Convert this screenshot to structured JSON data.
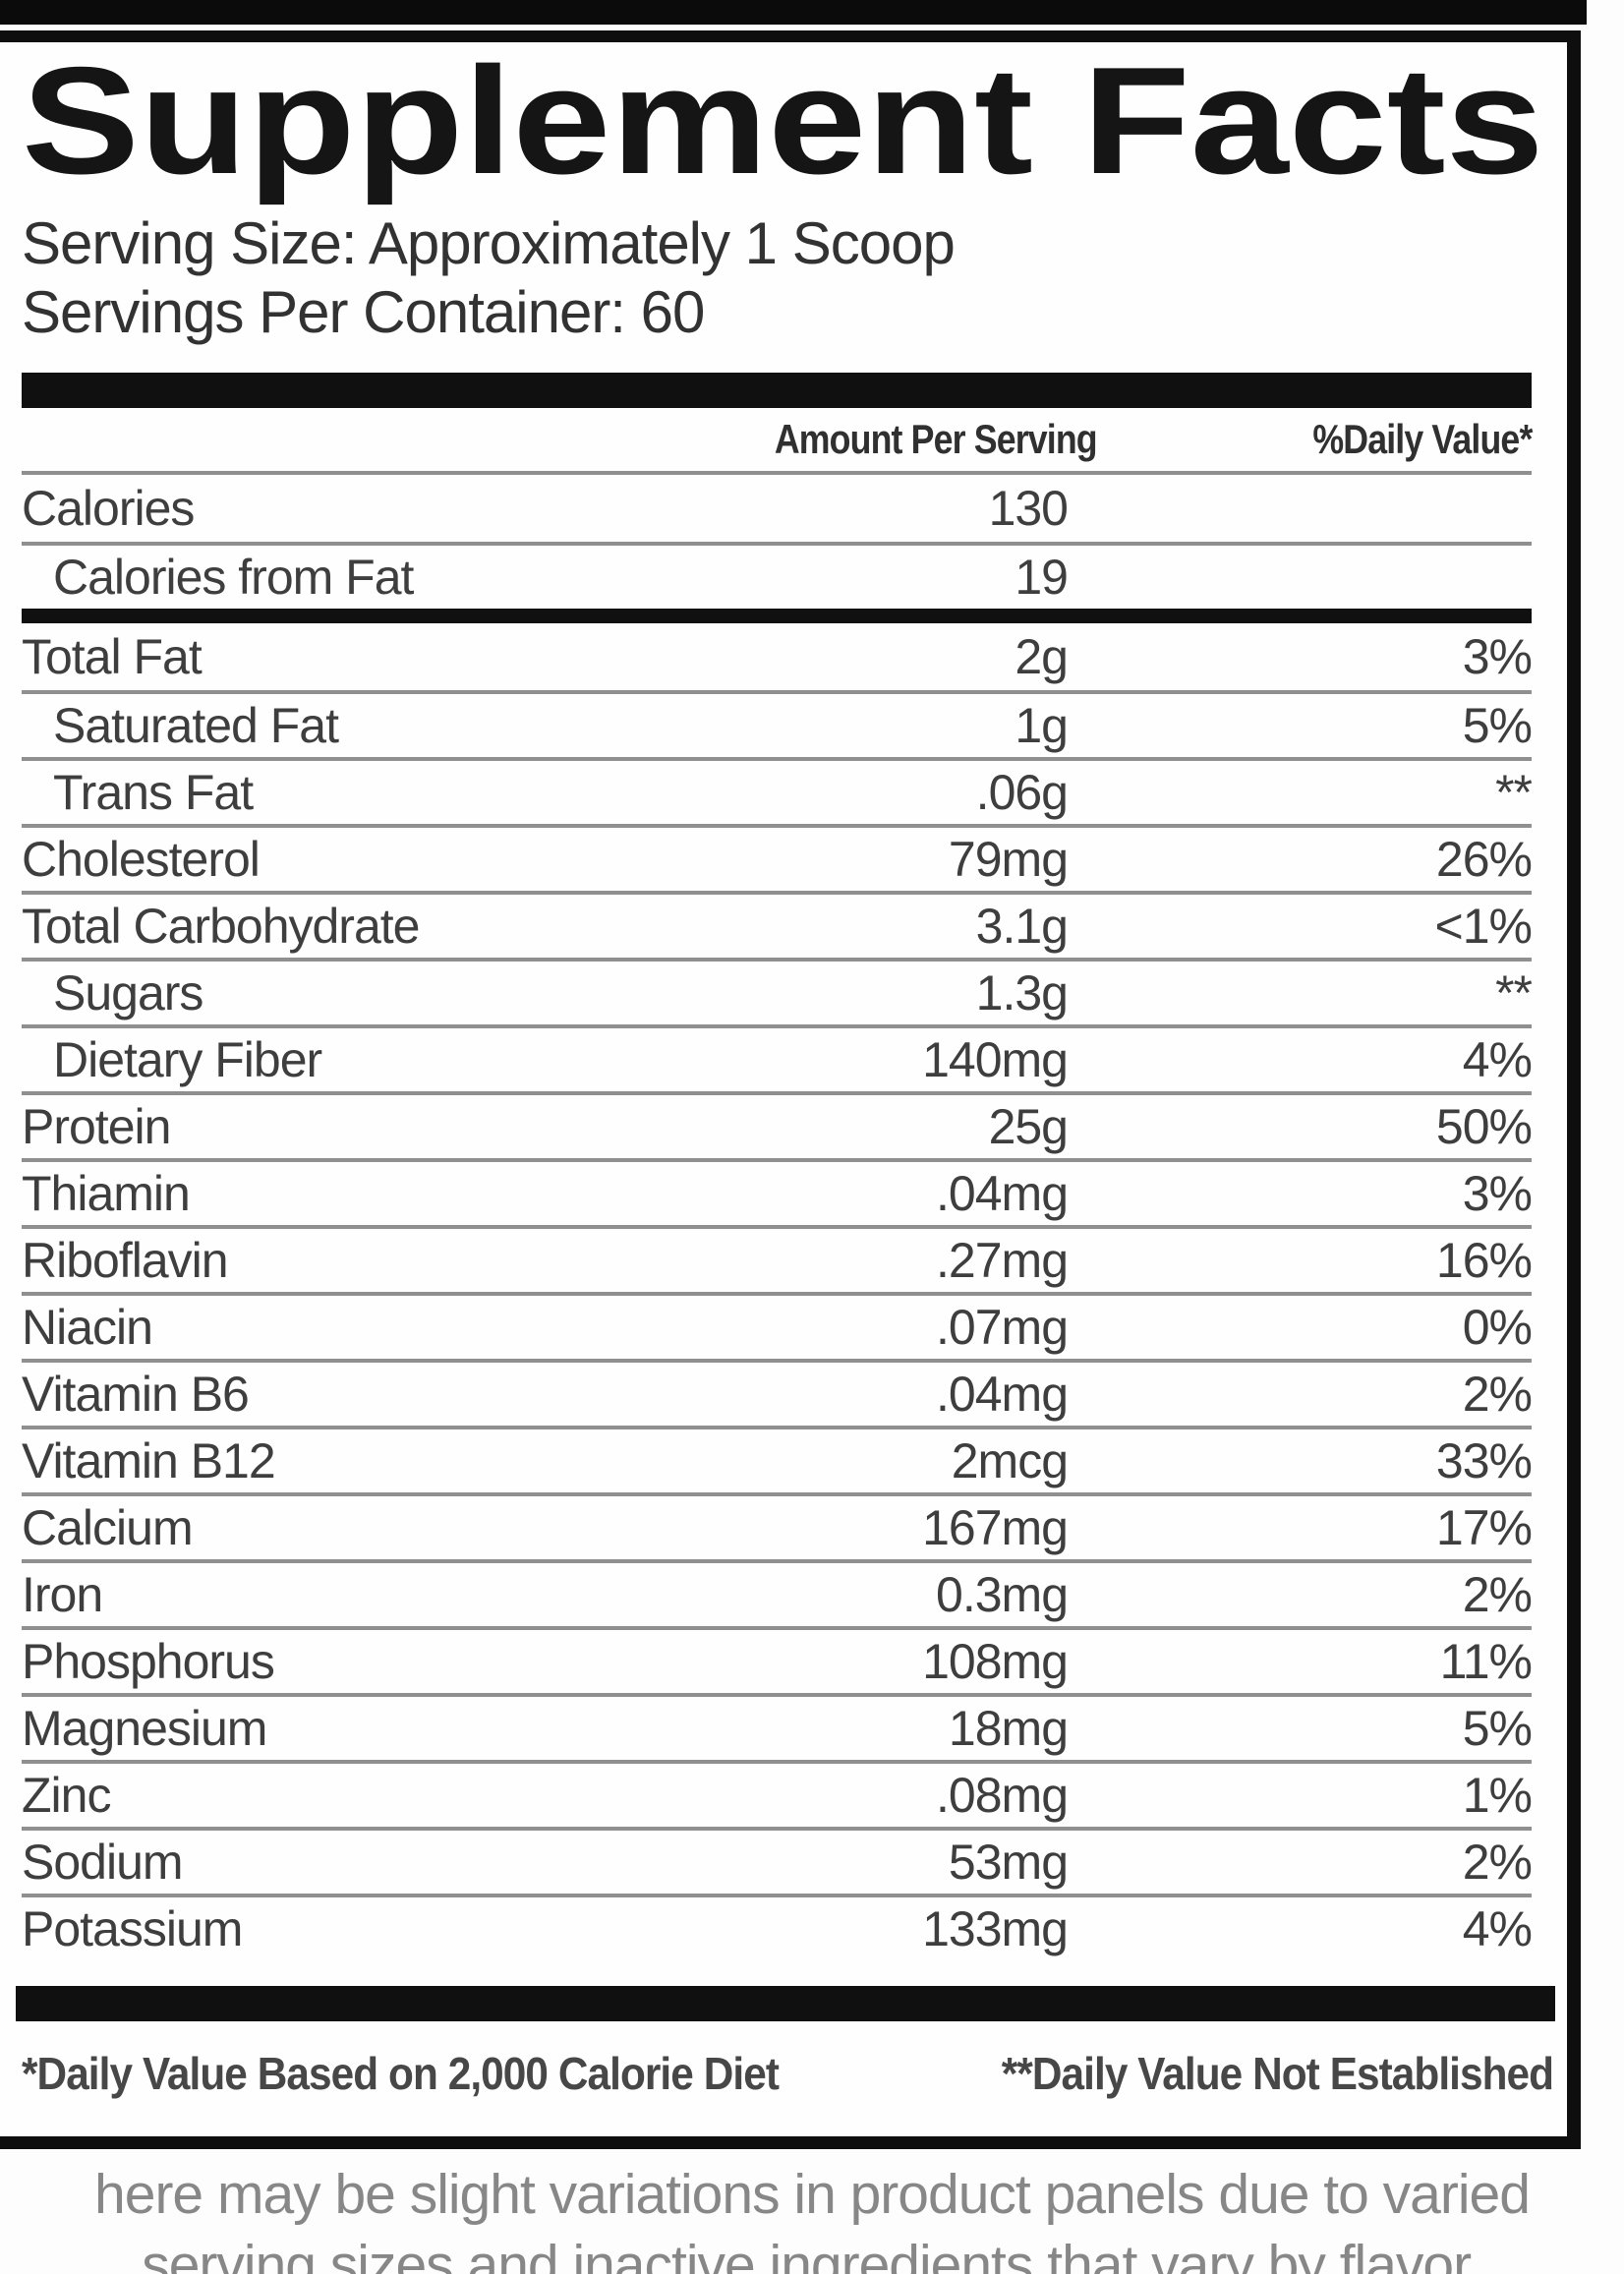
{
  "panel": {
    "title": "Supplement Facts",
    "serving_size": "Serving Size: Approximately 1 Scoop",
    "servings_per_container": "Servings Per Container: 60",
    "columns": {
      "amount": "Amount Per Serving",
      "daily_value": "%Daily Value*"
    },
    "calorie_rows": [
      {
        "name": "Calories",
        "amount": "130",
        "dv": "",
        "indent": false
      },
      {
        "name": "Calories from Fat",
        "amount": "19",
        "dv": "",
        "indent": true
      }
    ],
    "nutrient_rows": [
      {
        "name": "Total Fat",
        "amount": "2g",
        "dv": "3%",
        "indent": false
      },
      {
        "name": "Saturated Fat",
        "amount": "1g",
        "dv": "5%",
        "indent": true
      },
      {
        "name": "Trans Fat",
        "amount": ".06g",
        "dv": "**",
        "indent": true
      },
      {
        "name": "Cholesterol",
        "amount": "79mg",
        "dv": "26%",
        "indent": false
      },
      {
        "name": "Total Carbohydrate",
        "amount": "3.1g",
        "dv": "<1%",
        "indent": false
      },
      {
        "name": "Sugars",
        "amount": "1.3g",
        "dv": "**",
        "indent": true
      },
      {
        "name": "Dietary Fiber",
        "amount": "140mg",
        "dv": "4%",
        "indent": true
      },
      {
        "name": "Protein",
        "amount": "25g",
        "dv": "50%",
        "indent": false
      },
      {
        "name": "Thiamin",
        "amount": ".04mg",
        "dv": "3%",
        "indent": false
      },
      {
        "name": "Riboflavin",
        "amount": ".27mg",
        "dv": "16%",
        "indent": false
      },
      {
        "name": "Niacin",
        "amount": ".07mg",
        "dv": "0%",
        "indent": false
      },
      {
        "name": "Vitamin B6",
        "amount": ".04mg",
        "dv": "2%",
        "indent": false
      },
      {
        "name": "Vitamin B12",
        "amount": "2mcg",
        "dv": "33%",
        "indent": false
      },
      {
        "name": "Calcium",
        "amount": "167mg",
        "dv": "17%",
        "indent": false
      },
      {
        "name": "Iron",
        "amount": "0.3mg",
        "dv": "2%",
        "indent": false
      },
      {
        "name": "Phosphorus",
        "amount": "108mg",
        "dv": "11%",
        "indent": false
      },
      {
        "name": "Magnesium",
        "amount": "18mg",
        "dv": "5%",
        "indent": false
      },
      {
        "name": "Zinc",
        "amount": ".08mg",
        "dv": "1%",
        "indent": false
      },
      {
        "name": "Sodium",
        "amount": "53mg",
        "dv": "2%",
        "indent": false
      },
      {
        "name": "Potassium",
        "amount": "133mg",
        "dv": "4%",
        "indent": false
      }
    ],
    "footnotes": [
      "*Daily Value Based on 2,000 Calorie Diet",
      "**Daily Value Not Established"
    ]
  },
  "disclaimer": {
    "line1": "here may be slight variations in product panels due to varied",
    "line2": "serving sizes and inactive ingredients that vary by flavor."
  },
  "colors": {
    "bar": "#101010",
    "separator": "#8f8f8f",
    "text": "#3e3e3e",
    "disclaimer": "#878787"
  }
}
